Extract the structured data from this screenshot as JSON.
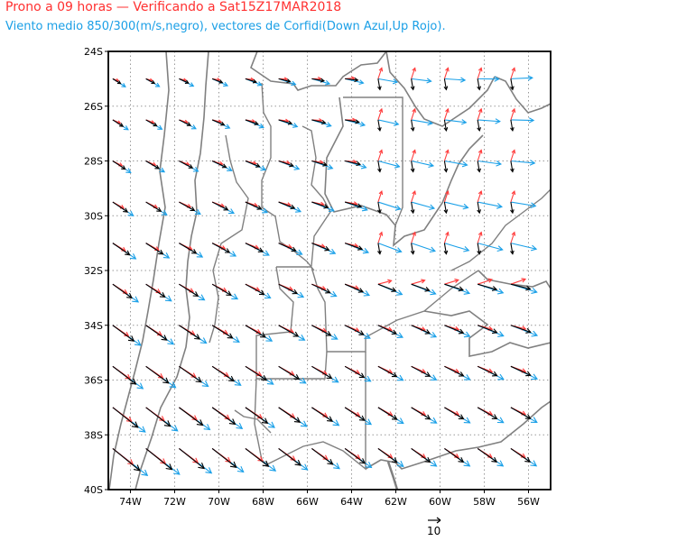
{
  "title": {
    "line1": "Prono a 09 horas — Verificando a Sat15Z17MAR2018",
    "line2": "Viento medio 850/300(m/s,negro), vectores de Corfidi(Down Azul,Up Rojo)."
  },
  "colors": {
    "mean_wind": "#000000",
    "corfidi_down": "#1aa0e8",
    "corfidi_up": "#ff3c3c",
    "borders": "#7a7a7a",
    "grid": "#999999",
    "frame": "#000000"
  },
  "axes": {
    "lat_range": [
      -40,
      -24
    ],
    "lon_range": [
      -75,
      -55
    ],
    "lat_ticks": [
      {
        "value": -24,
        "label": "24S"
      },
      {
        "value": -26,
        "label": "26S"
      },
      {
        "value": -28,
        "label": "28S"
      },
      {
        "value": -30,
        "label": "30S"
      },
      {
        "value": -32,
        "label": "32S"
      },
      {
        "value": -34,
        "label": "34S"
      },
      {
        "value": -36,
        "label": "36S"
      },
      {
        "value": -38,
        "label": "38S"
      },
      {
        "value": -40,
        "label": "40S"
      }
    ],
    "lon_ticks": [
      {
        "value": -74,
        "label": "74W"
      },
      {
        "value": -72,
        "label": "72W"
      },
      {
        "value": -70,
        "label": "70W"
      },
      {
        "value": -68,
        "label": "68W"
      },
      {
        "value": -66,
        "label": "66W"
      },
      {
        "value": -64,
        "label": "64W"
      },
      {
        "value": -62,
        "label": "62W"
      },
      {
        "value": -60,
        "label": "60W"
      },
      {
        "value": -58,
        "label": "58W"
      },
      {
        "value": -56,
        "label": "56W"
      }
    ],
    "grid": "dotted"
  },
  "reference_vector": {
    "label": "10",
    "speed_ms": 10
  },
  "vector_grid": {
    "lat_start": -25,
    "lat_step": -1.5,
    "rows": 11,
    "lon_start": -74.8,
    "lon_step": 1.5,
    "cols": 13
  }
}
